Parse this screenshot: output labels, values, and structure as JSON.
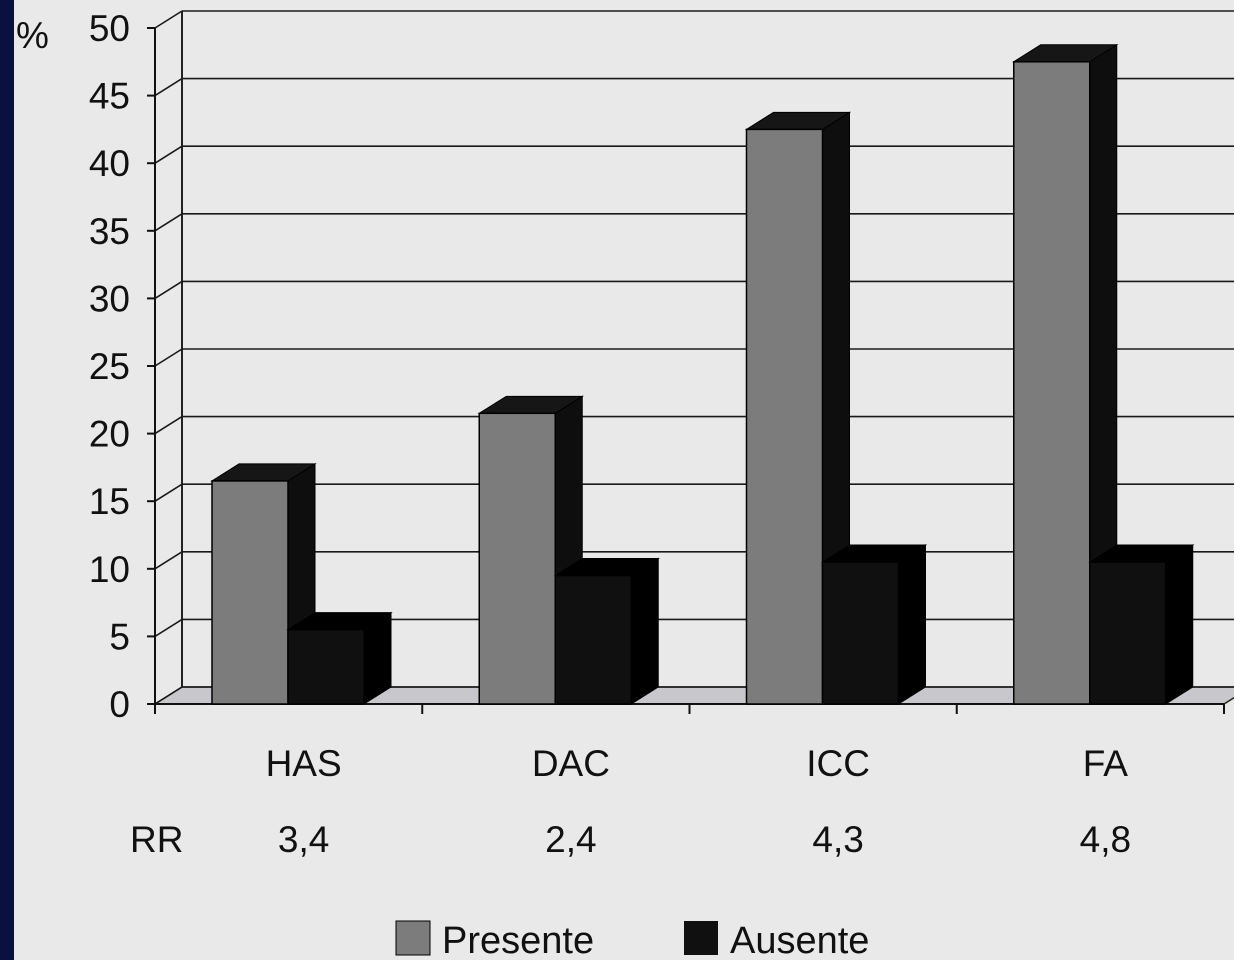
{
  "chart_data": {
    "type": "bar",
    "style": "3d-clustered",
    "y_unit": "%",
    "categories": [
      "HAS",
      "DAC",
      "ICC",
      "FA"
    ],
    "series": [
      {
        "name": "Presente",
        "values": [
          16.5,
          21.5,
          42.5,
          47.5
        ],
        "color": "#7c7c7c"
      },
      {
        "name": "Ausente",
        "values": [
          5.5,
          9.5,
          10.5,
          10.5
        ],
        "color": "#101010"
      }
    ],
    "ylim": [
      0,
      50
    ],
    "yticks": [
      0,
      5,
      10,
      15,
      20,
      25,
      30,
      35,
      40,
      45,
      50
    ],
    "grid": true,
    "legend_position": "bottom",
    "rr": {
      "label": "RR",
      "values": [
        "3,4",
        "2,4",
        "4,3",
        "4,8"
      ]
    }
  },
  "colors": {
    "frame": "#0a1040",
    "paper": "#e9e9e9",
    "grid": "#1a1a1a",
    "floor": "#c8c8cc"
  }
}
